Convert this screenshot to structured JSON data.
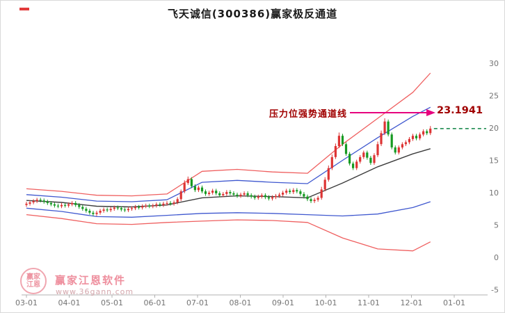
{
  "annotation": {
    "label": "压力位强势通道线",
    "value": "23.1941",
    "label_color": "#a00000",
    "arrow_color": "#e6007e"
  },
  "watermark": {
    "brand": "赢家江恩软件",
    "url": "www.36gann.com",
    "logo_text_top": "赢家",
    "logo_text_bottom": "江恩"
  },
  "colors": {
    "up": "#dd3434",
    "down": "#169a22",
    "current_dash": "#0a8040",
    "axis_line": "#b0b0b0",
    "axis_text": "#737373",
    "title_text": "#1a1a1a"
  },
  "chart_data": {
    "type": "candlestick",
    "title": "飞天诚信(300386)赢家极反通道",
    "x_ticks": [
      "03-01",
      "04-01",
      "05-01",
      "06-01",
      "07-01",
      "08-01",
      "09-01",
      "10-01",
      "11-01",
      "12-01",
      "01-01"
    ],
    "y_ticks": [
      30,
      25,
      20,
      15,
      10,
      5,
      0,
      -5
    ],
    "ylim": [
      -5,
      30
    ],
    "grid": false,
    "legend": "none",
    "pressure_level": 23.1941,
    "last_close_line": 19.9,
    "candles": [
      [
        8.1,
        8.6,
        7.8,
        8.3
      ],
      [
        8.3,
        8.8,
        8.0,
        8.5
      ],
      [
        8.5,
        9.0,
        8.2,
        8.7
      ],
      [
        8.7,
        9.2,
        8.4,
        8.9
      ],
      [
        8.9,
        9.2,
        8.5,
        8.8
      ],
      [
        8.8,
        9.1,
        8.3,
        8.6
      ],
      [
        8.6,
        8.9,
        8.1,
        8.4
      ],
      [
        8.4,
        8.7,
        7.9,
        8.2
      ],
      [
        8.2,
        8.5,
        7.7,
        8.0
      ],
      [
        8.0,
        8.3,
        7.6,
        7.9
      ],
      [
        7.9,
        8.4,
        7.6,
        8.1
      ],
      [
        8.1,
        8.4,
        7.7,
        8.0
      ],
      [
        8.0,
        8.5,
        7.7,
        8.2
      ],
      [
        8.2,
        8.7,
        7.9,
        8.4
      ],
      [
        8.4,
        8.7,
        7.8,
        8.1
      ],
      [
        8.1,
        8.4,
        7.5,
        7.8
      ],
      [
        7.8,
        8.1,
        7.2,
        7.5
      ],
      [
        7.5,
        7.8,
        6.9,
        7.2
      ],
      [
        7.2,
        7.5,
        6.6,
        6.9
      ],
      [
        6.9,
        7.2,
        6.4,
        6.7
      ],
      [
        6.7,
        7.2,
        6.4,
        6.9
      ],
      [
        6.9,
        7.5,
        6.6,
        7.2
      ],
      [
        7.2,
        7.7,
        6.9,
        7.4
      ],
      [
        7.4,
        7.7,
        7.0,
        7.3
      ],
      [
        7.3,
        7.8,
        7.0,
        7.5
      ],
      [
        7.5,
        8.0,
        7.2,
        7.7
      ],
      [
        7.7,
        8.0,
        7.3,
        7.6
      ],
      [
        7.6,
        7.9,
        7.1,
        7.4
      ],
      [
        7.4,
        7.7,
        7.0,
        7.3
      ],
      [
        7.3,
        7.8,
        7.0,
        7.5
      ],
      [
        7.5,
        7.9,
        7.2,
        7.6
      ],
      [
        7.6,
        8.1,
        7.3,
        7.8
      ],
      [
        7.8,
        8.1,
        7.4,
        7.7
      ],
      [
        7.7,
        8.2,
        7.4,
        7.9
      ],
      [
        7.9,
        8.3,
        7.6,
        8.0
      ],
      [
        8.0,
        8.3,
        7.6,
        7.9
      ],
      [
        7.9,
        8.3,
        7.6,
        8.0
      ],
      [
        8.0,
        8.5,
        7.7,
        8.2
      ],
      [
        8.2,
        8.5,
        7.8,
        8.1
      ],
      [
        8.1,
        8.6,
        7.8,
        8.3
      ],
      [
        8.3,
        8.7,
        8.0,
        8.4
      ],
      [
        8.4,
        8.7,
        8.0,
        8.3
      ],
      [
        8.3,
        8.8,
        8.0,
        8.5
      ],
      [
        8.5,
        9.3,
        8.2,
        9.0
      ],
      [
        9.0,
        10.5,
        8.7,
        10.2
      ],
      [
        10.2,
        11.9,
        9.9,
        11.5
      ],
      [
        11.5,
        12.5,
        11.2,
        12.1
      ],
      [
        12.1,
        12.4,
        10.7,
        11.0
      ],
      [
        11.0,
        11.3,
        10.1,
        10.4
      ],
      [
        10.4,
        11.1,
        10.1,
        10.8
      ],
      [
        10.8,
        11.1,
        9.9,
        10.2
      ],
      [
        10.2,
        10.5,
        9.5,
        9.8
      ],
      [
        9.8,
        10.3,
        9.5,
        10.0
      ],
      [
        10.0,
        10.6,
        9.7,
        10.3
      ],
      [
        10.3,
        10.6,
        9.6,
        9.9
      ],
      [
        9.9,
        10.2,
        9.3,
        9.6
      ],
      [
        9.6,
        10.1,
        9.3,
        9.8
      ],
      [
        9.8,
        10.4,
        9.5,
        10.1
      ],
      [
        10.1,
        10.4,
        9.6,
        9.9
      ],
      [
        9.9,
        10.2,
        9.4,
        9.7
      ],
      [
        9.7,
        10.0,
        9.2,
        9.5
      ],
      [
        9.5,
        10.0,
        9.2,
        9.7
      ],
      [
        9.7,
        10.2,
        9.4,
        9.9
      ],
      [
        9.9,
        10.2,
        9.3,
        9.6
      ],
      [
        9.6,
        9.9,
        9.1,
        9.4
      ],
      [
        9.4,
        9.7,
        8.9,
        9.2
      ],
      [
        9.2,
        9.7,
        8.9,
        9.4
      ],
      [
        9.4,
        9.9,
        9.1,
        9.6
      ],
      [
        9.6,
        9.9,
        9.0,
        9.3
      ],
      [
        9.3,
        9.6,
        8.8,
        9.1
      ],
      [
        9.1,
        9.6,
        8.8,
        9.3
      ],
      [
        9.3,
        9.8,
        9.0,
        9.5
      ],
      [
        9.5,
        10.0,
        9.2,
        9.7
      ],
      [
        9.7,
        10.3,
        9.4,
        10.0
      ],
      [
        10.0,
        10.6,
        9.7,
        10.3
      ],
      [
        10.3,
        10.6,
        9.8,
        10.1
      ],
      [
        10.1,
        10.7,
        9.8,
        10.4
      ],
      [
        10.4,
        10.7,
        9.9,
        10.2
      ],
      [
        10.2,
        10.5,
        9.5,
        9.8
      ],
      [
        9.8,
        10.1,
        9.1,
        9.4
      ],
      [
        9.4,
        9.7,
        8.7,
        9.0
      ],
      [
        9.0,
        9.3,
        8.4,
        8.7
      ],
      [
        8.7,
        9.2,
        8.4,
        8.9
      ],
      [
        8.9,
        9.5,
        8.6,
        9.2
      ],
      [
        9.2,
        10.9,
        8.9,
        10.5
      ],
      [
        10.5,
        12.4,
        10.2,
        12.0
      ],
      [
        12.0,
        14.2,
        11.7,
        13.8
      ],
      [
        13.8,
        15.9,
        13.5,
        15.5
      ],
      [
        15.5,
        17.6,
        15.2,
        17.2
      ],
      [
        17.2,
        19.3,
        16.9,
        18.8
      ],
      [
        18.8,
        19.1,
        17.2,
        17.5
      ],
      [
        17.5,
        17.8,
        15.7,
        16.0
      ],
      [
        16.0,
        16.3,
        14.2,
        14.5
      ],
      [
        14.5,
        14.8,
        13.5,
        13.8
      ],
      [
        13.8,
        15.1,
        13.5,
        14.8
      ],
      [
        14.8,
        15.8,
        14.5,
        15.5
      ],
      [
        15.5,
        16.5,
        15.2,
        16.2
      ],
      [
        16.2,
        16.5,
        15.1,
        15.4
      ],
      [
        15.4,
        15.7,
        14.3,
        14.6
      ],
      [
        14.6,
        16.1,
        14.3,
        15.8
      ],
      [
        15.8,
        17.9,
        15.5,
        17.5
      ],
      [
        17.5,
        19.6,
        17.2,
        19.2
      ],
      [
        19.2,
        21.5,
        18.9,
        21.0
      ],
      [
        21.0,
        21.3,
        18.7,
        19.0
      ],
      [
        19.0,
        19.3,
        16.7,
        17.0
      ],
      [
        17.0,
        17.3,
        15.9,
        16.2
      ],
      [
        16.2,
        17.3,
        15.9,
        17.0
      ],
      [
        17.0,
        17.8,
        16.7,
        17.5
      ],
      [
        17.5,
        18.1,
        17.2,
        17.8
      ],
      [
        17.8,
        18.6,
        17.5,
        18.3
      ],
      [
        18.3,
        19.1,
        18.0,
        18.8
      ],
      [
        18.8,
        19.1,
        18.1,
        18.4
      ],
      [
        18.4,
        19.3,
        18.1,
        19.0
      ],
      [
        19.0,
        19.8,
        18.7,
        19.5
      ],
      [
        19.5,
        19.8,
        18.9,
        19.2
      ],
      [
        19.2,
        20.3,
        18.9,
        19.9
      ]
    ],
    "line_sample_indices": [
      0,
      10,
      20,
      30,
      40,
      50,
      60,
      70,
      80,
      90,
      100,
      110,
      115
    ],
    "series": [
      {
        "name": "upper-outer-red",
        "color": "#ef5f5f",
        "width": 1.3,
        "values": [
          10.6,
          10.2,
          9.6,
          9.5,
          9.8,
          13.3,
          13.6,
          13.2,
          13.0,
          17.5,
          21.5,
          25.5,
          28.5
        ]
      },
      {
        "name": "upper-inner-blue",
        "color": "#3f58cf",
        "width": 1.3,
        "values": [
          9.7,
          9.3,
          8.7,
          8.6,
          8.9,
          11.6,
          11.9,
          11.6,
          11.4,
          15.0,
          18.5,
          21.8,
          23.2
        ]
      },
      {
        "name": "middle-black",
        "color": "#3c3c3c",
        "width": 1.4,
        "values": [
          8.8,
          8.5,
          7.9,
          7.8,
          8.1,
          9.2,
          9.5,
          9.4,
          9.2,
          11.5,
          14.0,
          16.0,
          16.8
        ]
      },
      {
        "name": "lower-inner-blue",
        "color": "#3f58cf",
        "width": 1.3,
        "values": [
          7.6,
          7.1,
          6.3,
          6.2,
          6.5,
          6.8,
          6.9,
          6.8,
          6.6,
          6.4,
          6.7,
          7.7,
          8.6
        ]
      },
      {
        "name": "lower-outer-red",
        "color": "#ef5f5f",
        "width": 1.3,
        "values": [
          6.6,
          6.0,
          5.2,
          5.1,
          5.4,
          5.6,
          5.8,
          5.7,
          5.4,
          3.0,
          1.3,
          1.0,
          2.4
        ]
      }
    ]
  }
}
